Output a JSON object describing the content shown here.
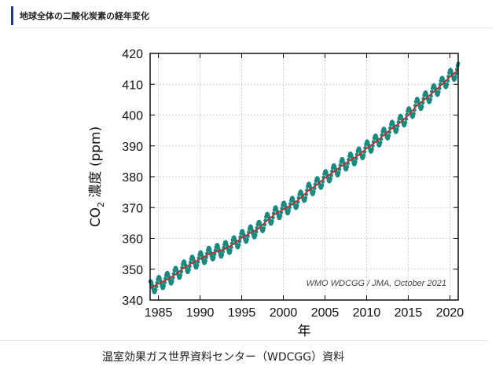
{
  "page": {
    "header_title": "地球全体の二酸化炭素の経年変化",
    "caption": "温室効果ガス世界資料センター（WDCGG）資料"
  },
  "chart_data": {
    "type": "line",
    "title": "",
    "xlabel": "年",
    "ylabel_main": "CO",
    "ylabel_sub": "2",
    "ylabel_rest": " 濃度 (ppm)",
    "xlim": [
      1984,
      2021
    ],
    "ylim": [
      340,
      420
    ],
    "x_ticks": [
      1985,
      1990,
      1995,
      2000,
      2005,
      2010,
      2015,
      2020
    ],
    "y_ticks": [
      340,
      350,
      360,
      370,
      380,
      390,
      400,
      410,
      420
    ],
    "grid": true,
    "annotation": "WMO WDCGG / JMA, October 2021",
    "colors": {
      "trend": "#cc2222",
      "monthly": "#1a8a80"
    },
    "series": [
      {
        "name": "trend",
        "style": "line",
        "x": [
          1984,
          1985,
          1986,
          1987,
          1988,
          1989,
          1990,
          1991,
          1992,
          1993,
          1994,
          1995,
          1996,
          1997,
          1998,
          1999,
          2000,
          2001,
          2002,
          2003,
          2004,
          2005,
          2006,
          2007,
          2008,
          2009,
          2010,
          2011,
          2012,
          2013,
          2014,
          2015,
          2016,
          2017,
          2018,
          2019,
          2020,
          2021
        ],
        "values": [
          343.9,
          345.3,
          346.6,
          348.2,
          350.3,
          351.9,
          353.3,
          354.8,
          355.7,
          356.6,
          358.1,
          360.2,
          361.7,
          363.1,
          365.7,
          367.9,
          369.4,
          370.9,
          372.9,
          375.5,
          377.3,
          379.6,
          381.5,
          383.5,
          385.3,
          386.9,
          389.2,
          391.1,
          393.3,
          395.6,
          397.5,
          399.9,
          403.0,
          405.1,
          407.4,
          409.8,
          412.4,
          414.6
        ]
      },
      {
        "name": "monthly",
        "style": "dotted",
        "seasonal_amplitude_ppm": 2.2,
        "points_per_year": 12,
        "based_on": "trend"
      }
    ]
  }
}
